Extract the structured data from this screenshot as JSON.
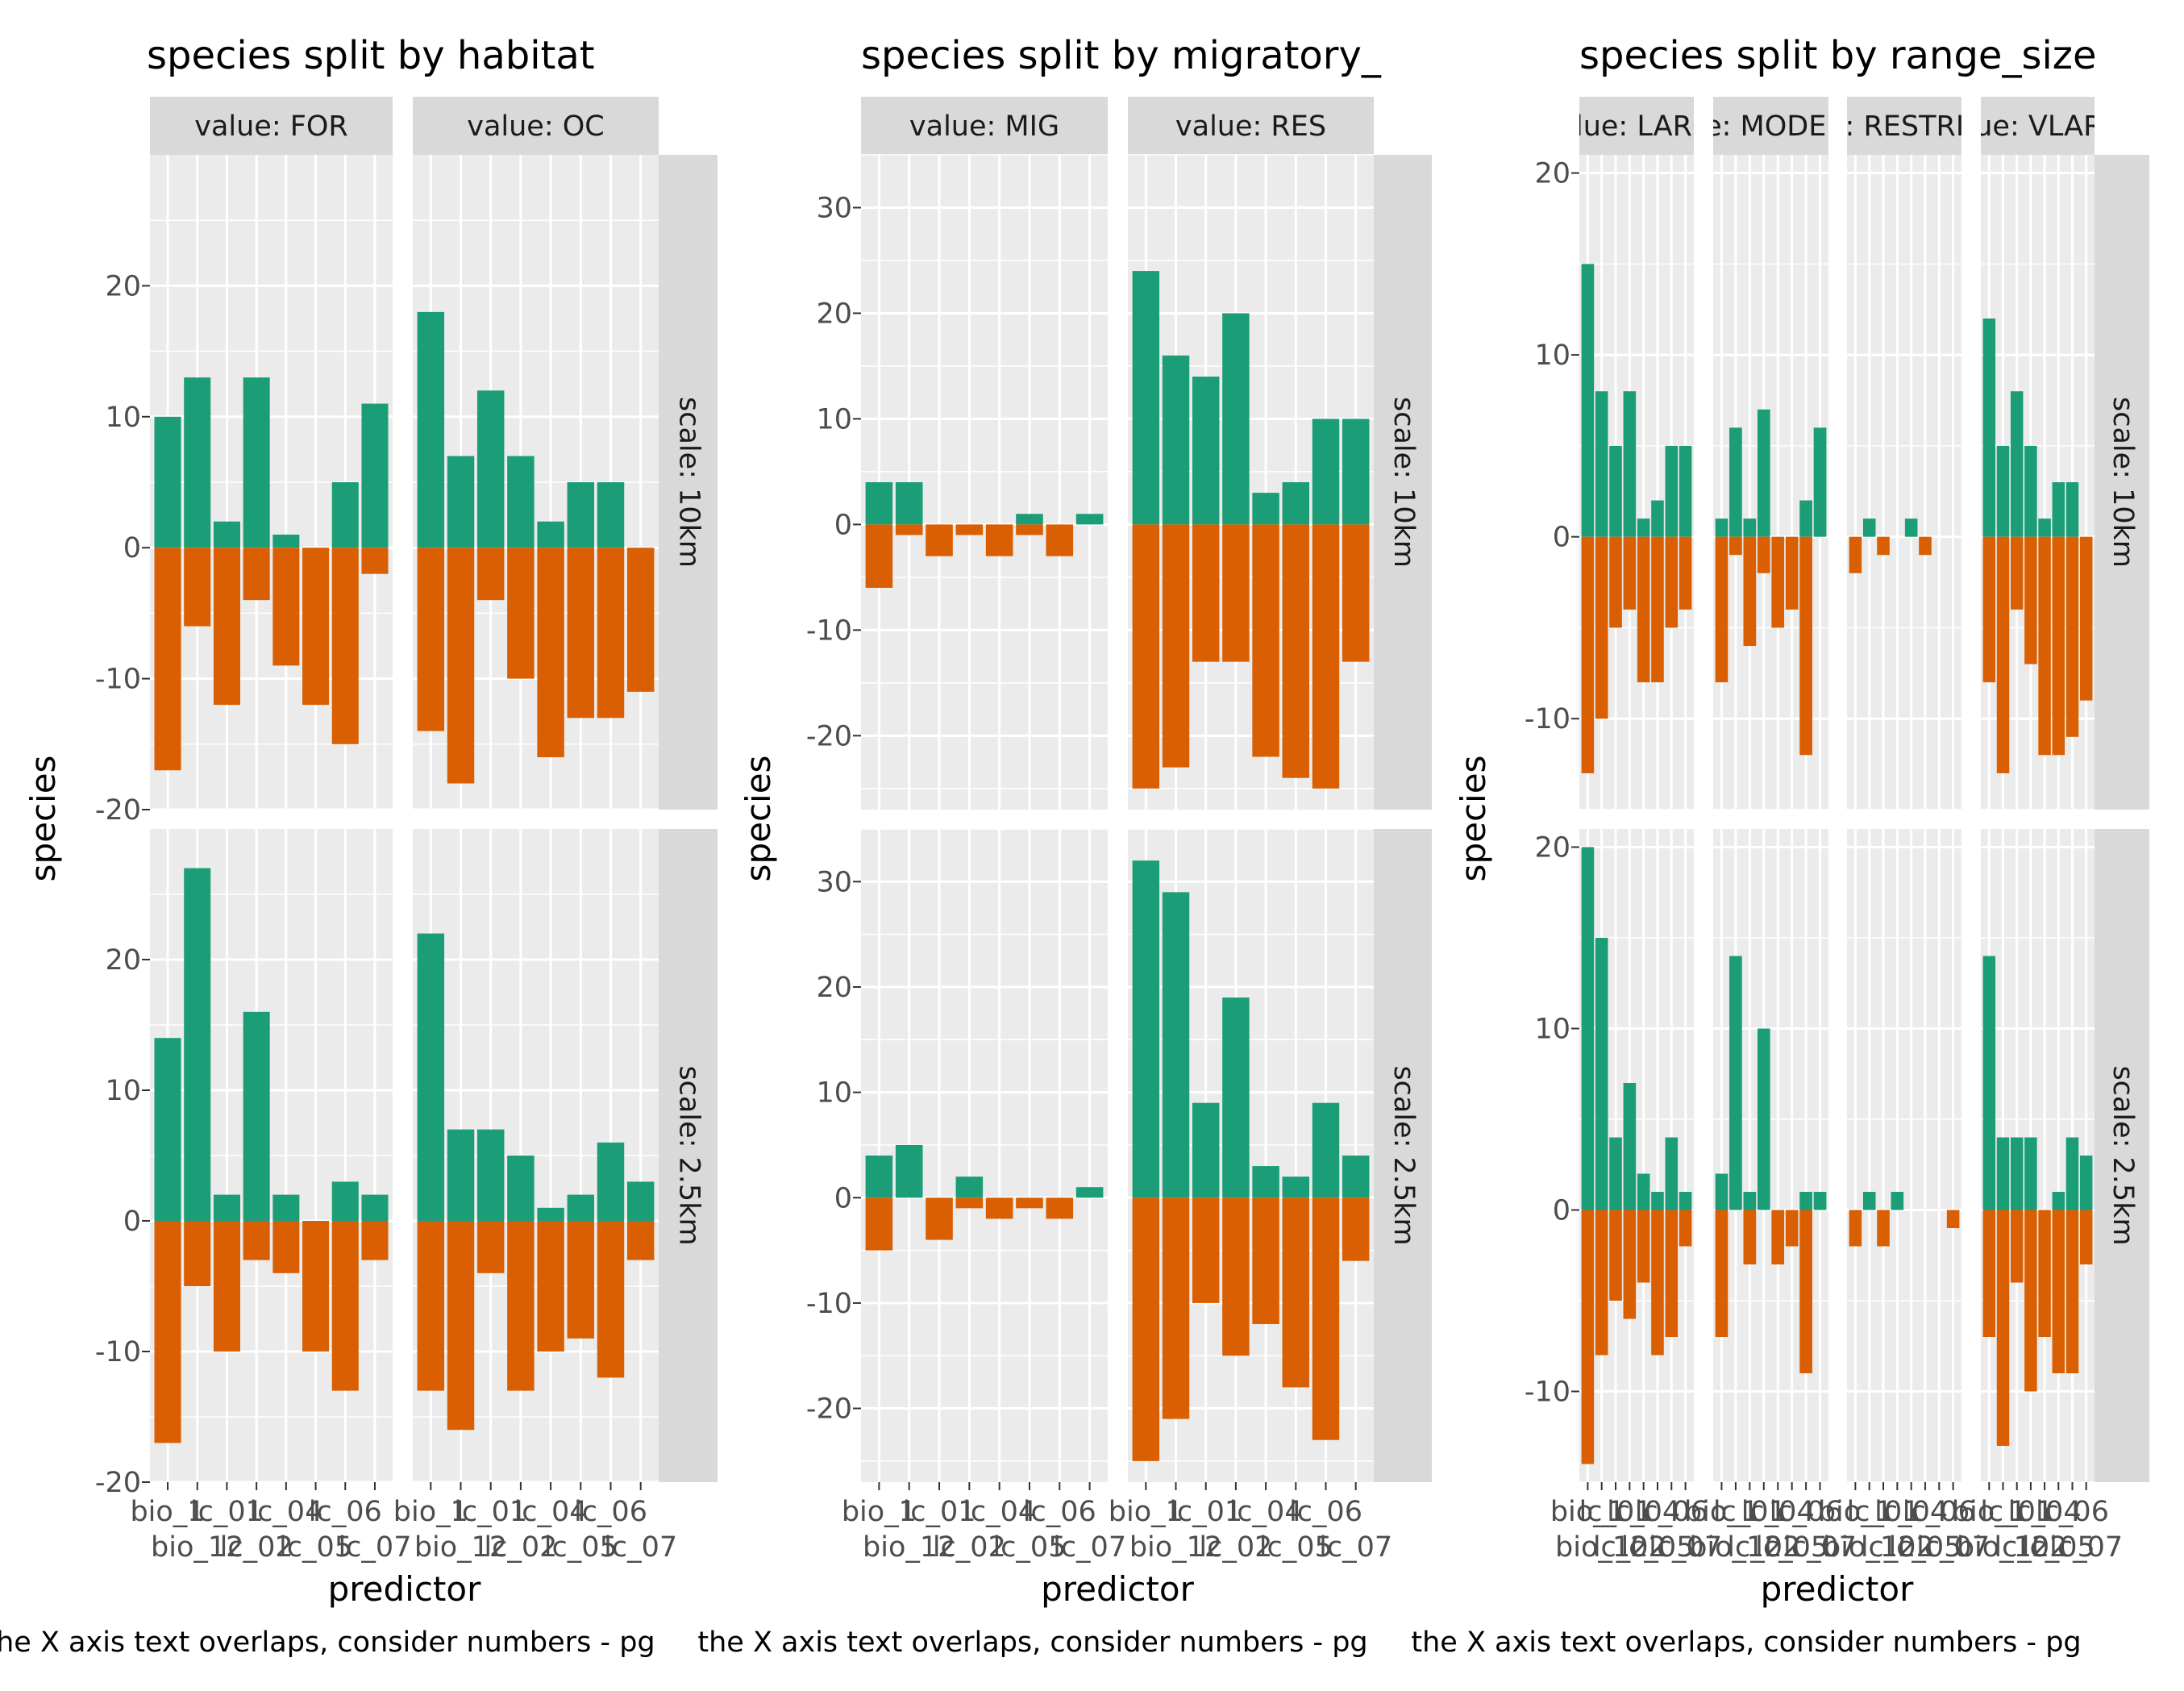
{
  "colors": {
    "positive": "#1b9e77",
    "negative": "#d95f02",
    "panel_bg": "#ebebeb",
    "strip_bg": "#d9d9d9",
    "grid": "#ffffff",
    "text": "#000000",
    "axis_text": "#4d4d4d"
  },
  "chart_data": [
    {
      "type": "bar",
      "stacked": "diverging",
      "title": "species split by habitat",
      "xlabel": "predictor",
      "ylabel": "species",
      "caption": "the X axis text overlaps, consider numbers - pg",
      "tick_labels_row1": [
        "bio_1",
        "lc_01",
        "lc_04",
        "lc_06"
      ],
      "tick_labels_row2": [
        "bio_12",
        "lc_02",
        "lc_05",
        "lc_07"
      ],
      "categories": [
        "bio_1",
        "bio_12",
        "lc_01",
        "lc_02",
        "lc_04",
        "lc_05",
        "lc_06",
        "lc_07"
      ],
      "col_facets": [
        "value: FOR",
        "value: OC"
      ],
      "row_facets": [
        "scale: 10km",
        "scale: 2.5km"
      ],
      "yticks": [
        "20",
        "10",
        "0",
        "-10",
        "-20"
      ],
      "ytick_values": [
        20,
        10,
        0,
        -10,
        -20
      ],
      "ylim": [
        -20,
        30
      ],
      "panels": [
        [
          {
            "pos": [
              10,
              13,
              2,
              13,
              1,
              0,
              5,
              11
            ],
            "neg": [
              -17,
              -6,
              -12,
              -4,
              -9,
              -12,
              -15,
              -2
            ]
          },
          {
            "pos": [
              18,
              7,
              12,
              7,
              2,
              5,
              5,
              0
            ],
            "neg": [
              -14,
              -18,
              -4,
              -10,
              -16,
              -13,
              -13,
              -11
            ]
          }
        ],
        [
          {
            "pos": [
              14,
              27,
              2,
              16,
              2,
              0,
              3,
              2
            ],
            "neg": [
              -17,
              -5,
              -10,
              -3,
              -4,
              -10,
              -13,
              -3
            ]
          },
          {
            "pos": [
              22,
              7,
              7,
              5,
              1,
              2,
              6,
              3
            ],
            "neg": [
              -13,
              -16,
              -4,
              -13,
              -10,
              -9,
              -12,
              -3
            ]
          }
        ]
      ]
    },
    {
      "type": "bar",
      "stacked": "diverging",
      "title": "species split by migratory_",
      "xlabel": "predictor",
      "ylabel": "species",
      "caption": "the X axis text overlaps, consider numbers - pg",
      "tick_labels_row1": [
        "bio_1",
        "lc_01",
        "lc_04",
        "lc_06"
      ],
      "tick_labels_row2": [
        "bio_12",
        "lc_02",
        "lc_05",
        "lc_07"
      ],
      "categories": [
        "bio_1",
        "bio_12",
        "lc_01",
        "lc_02",
        "lc_04",
        "lc_05",
        "lc_06",
        "lc_07"
      ],
      "col_facets": [
        "value: MIG",
        "value: RES"
      ],
      "row_facets": [
        "scale: 10km",
        "scale: 2.5km"
      ],
      "yticks": [
        "30",
        "20",
        "10",
        "0",
        "-10",
        "-20"
      ],
      "ytick_values": [
        30,
        20,
        10,
        0,
        -10,
        -20
      ],
      "ylim": [
        -27,
        35
      ],
      "panels": [
        [
          {
            "pos": [
              4,
              4,
              0,
              0,
              0,
              1,
              0,
              1
            ],
            "neg": [
              -6,
              -1,
              -3,
              -1,
              -3,
              -1,
              -3,
              0
            ]
          },
          {
            "pos": [
              24,
              16,
              14,
              20,
              3,
              4,
              10,
              10
            ],
            "neg": [
              -25,
              -23,
              -13,
              -13,
              -22,
              -24,
              -25,
              -13
            ]
          }
        ],
        [
          {
            "pos": [
              4,
              5,
              0,
              2,
              0,
              0,
              0,
              1
            ],
            "neg": [
              -5,
              0,
              -4,
              -1,
              -2,
              -1,
              -2,
              0
            ]
          },
          {
            "pos": [
              32,
              29,
              9,
              19,
              3,
              2,
              9,
              4
            ],
            "neg": [
              -25,
              -21,
              -10,
              -15,
              -12,
              -18,
              -23,
              -6
            ]
          }
        ]
      ]
    },
    {
      "type": "bar",
      "stacked": "diverging",
      "title": "species split by range_size",
      "xlabel": "predictor",
      "ylabel": "species",
      "caption": "the X axis text overlaps, consider numbers - pg",
      "tick_labels_row1": [
        "bio_1",
        "lc_01",
        "lc_04",
        "lc_06"
      ],
      "tick_labels_row2": [
        "bio_12",
        "lc_02",
        "lc_05",
        "lc_07"
      ],
      "categories": [
        "bio_1",
        "bio_12",
        "lc_01",
        "lc_02",
        "lc_04",
        "lc_05",
        "lc_06",
        "lc_07"
      ],
      "col_facets": [
        "value: LARGE",
        "value: MODERATE",
        "value: RESTRICTED",
        "value: VLARGE"
      ],
      "row_facets": [
        "scale: 10km",
        "scale: 2.5km"
      ],
      "yticks": [
        "20",
        "10",
        "0",
        "-10"
      ],
      "ytick_values": [
        20,
        10,
        0,
        -10
      ],
      "ylim": [
        -15,
        21
      ],
      "panels": [
        [
          {
            "pos": [
              15,
              8,
              5,
              8,
              1,
              2,
              5,
              5
            ],
            "neg": [
              -13,
              -10,
              -5,
              -4,
              -8,
              -8,
              -5,
              -4
            ]
          },
          {
            "pos": [
              1,
              6,
              1,
              7,
              0,
              0,
              2,
              6
            ],
            "neg": [
              -8,
              -1,
              -6,
              -2,
              -5,
              -4,
              -12,
              0
            ]
          },
          {
            "pos": [
              0,
              1,
              0,
              0,
              1,
              0,
              0,
              0
            ],
            "neg": [
              -2,
              0,
              -1,
              0,
              0,
              -1,
              0,
              0
            ]
          },
          {
            "pos": [
              12,
              5,
              8,
              5,
              1,
              3,
              3,
              0
            ],
            "neg": [
              -8,
              -13,
              -4,
              -7,
              -12,
              -12,
              -11,
              -9
            ]
          }
        ],
        [
          {
            "pos": [
              20,
              15,
              4,
              7,
              2,
              1,
              4,
              1
            ],
            "neg": [
              -14,
              -8,
              -5,
              -6,
              -4,
              -8,
              -7,
              -2
            ]
          },
          {
            "pos": [
              2,
              14,
              1,
              10,
              0,
              0,
              1,
              1
            ],
            "neg": [
              -7,
              0,
              -3,
              0,
              -3,
              -2,
              -9,
              0
            ]
          },
          {
            "pos": [
              0,
              1,
              0,
              1,
              0,
              0,
              0,
              0
            ],
            "neg": [
              -2,
              0,
              -2,
              0,
              0,
              0,
              0,
              -1
            ]
          },
          {
            "pos": [
              14,
              4,
              4,
              4,
              0,
              1,
              4,
              3
            ],
            "neg": [
              -7,
              -13,
              -4,
              -10,
              -7,
              -9,
              -9,
              -3
            ]
          }
        ]
      ]
    }
  ]
}
